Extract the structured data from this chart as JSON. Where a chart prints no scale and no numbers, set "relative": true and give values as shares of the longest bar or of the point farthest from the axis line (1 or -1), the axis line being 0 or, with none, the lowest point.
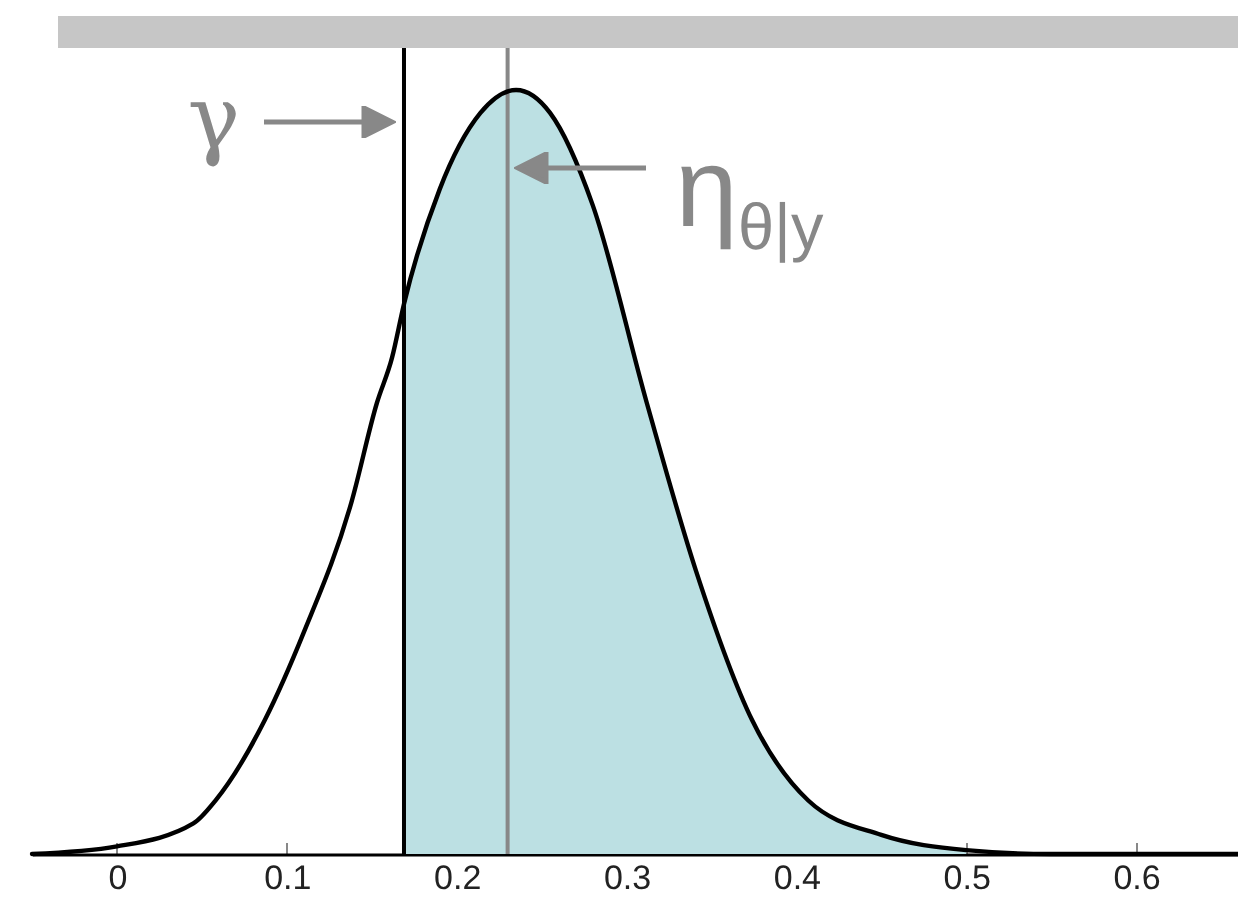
{
  "chart_data": {
    "type": "line",
    "relative": true,
    "xlim": [
      -0.05,
      0.66
    ],
    "xticks": [
      0,
      0.1,
      0.2,
      0.3,
      0.4,
      0.5,
      0.6
    ],
    "grid": false,
    "marker": "none",
    "line_style": "solid",
    "series": [
      {
        "type": "area",
        "color": "#bce0e3",
        "x": [
          0.169,
          0.19,
          0.214,
          0.235,
          0.255,
          0.28,
          0.312,
          0.341,
          0.374,
          0.407,
          0.45,
          0.5
        ],
        "values": [
          0.72,
          0.87,
          0.97,
          1,
          0.97,
          0.85,
          0.59,
          0.37,
          0.175,
          0.07,
          0.025,
          0.005
        ]
      },
      {
        "type": "line",
        "color": "#000000",
        "x": [
          -0.05,
          0,
          0.045,
          0.058,
          0.087,
          0.11,
          0.138,
          0.153,
          0.162,
          0.169,
          0.19,
          0.214,
          0.235,
          0.255,
          0.28,
          0.312,
          0.341,
          0.374,
          0.407,
          0.45,
          0.5,
          0.55,
          0.66
        ],
        "values": [
          0,
          0.01,
          0.04,
          0.07,
          0.175,
          0.29,
          0.46,
          0.59,
          0.65,
          0.72,
          0.87,
          0.97,
          1,
          0.97,
          0.85,
          0.59,
          0.37,
          0.175,
          0.07,
          0.025,
          0.005,
          0,
          0
        ]
      }
    ],
    "ref_lines": [
      {
        "axis": "x",
        "value": 0.169,
        "label": "γ",
        "color": "#000000"
      },
      {
        "axis": "x",
        "value": 0.23,
        "label": "η$_{θ|y}$",
        "color": "#888888"
      }
    ]
  }
}
